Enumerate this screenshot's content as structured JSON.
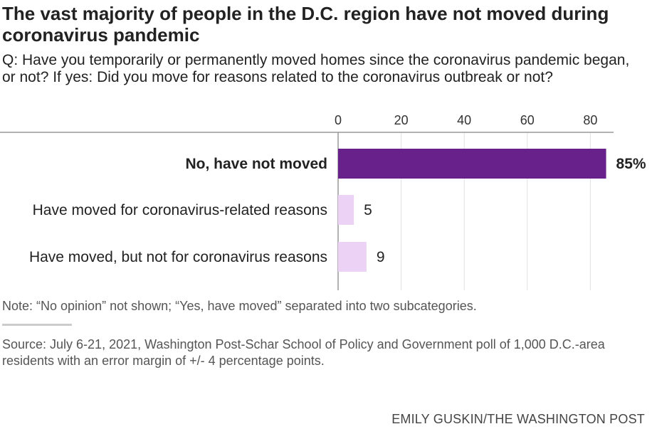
{
  "title": "The vast majority of people in the D.C. region have not moved during coronavirus pandemic",
  "question": "Q: Have you temporarily or permanently moved homes since the coronavirus pandemic began, or not? If yes: Did you move for reasons related to the coronavirus outbreak or not?",
  "note": "Note: “No opinion” not shown; “Yes, have moved” separated into two subcategories.",
  "source": "Source: July 6-21, 2021, Washington Post-Schar School of Policy and Government poll of 1,000 D.C.-area residents with an error margin of +/- 4 percentage points.",
  "credit": "EMILY GUSKIN/THE WASHINGTON POST",
  "colors": {
    "highlight": "#68208a",
    "other": "#ecd3f5"
  },
  "chart_data": {
    "type": "bar",
    "orientation": "horizontal",
    "categories": [
      "No, have not moved",
      "Have moved for coronavirus-related reasons",
      "Have moved, but not for coronavirus reasons"
    ],
    "values": [
      85,
      5,
      9
    ],
    "value_labels": [
      "85%",
      "5",
      "9"
    ],
    "highlight_index": 0,
    "xlim": [
      0,
      85
    ],
    "xticks": [
      "0",
      "20",
      "40",
      "60",
      "80"
    ],
    "tick_values": [
      0,
      20,
      40,
      60,
      80
    ],
    "grid": true
  }
}
